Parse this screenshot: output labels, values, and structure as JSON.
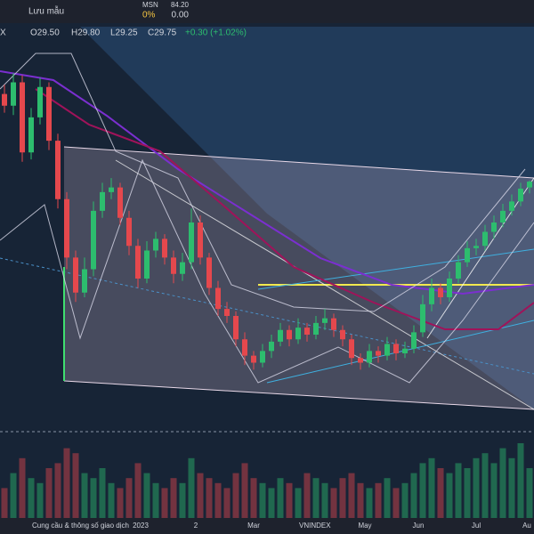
{
  "toolbar": {
    "save_label": "Lưu mẫu",
    "ticker": "MSN",
    "price": "84.20",
    "change_pct": "0%",
    "change": "0.00"
  },
  "legend": {
    "symbol": "X",
    "open": "O29.50",
    "high": "H29.80",
    "low": "L29.25",
    "close": "C29.75",
    "change": "+0.30 (+1.02%)"
  },
  "chart_data": {
    "type": "candlestick",
    "ylim": [
      20,
      36
    ],
    "up_color": "#2dbd6e",
    "down_color": "#e5484d",
    "open": [
      33.5,
      33.0,
      34.0,
      31.0,
      32.5,
      33.8,
      31.5,
      29.0,
      26.5,
      25.0,
      26.0,
      28.5,
      29.3,
      29.5,
      28.2,
      27.0,
      25.6,
      26.8,
      27.3,
      26.5,
      25.8,
      26.3,
      28.0,
      26.5,
      25.2,
      24.3,
      24.0,
      23.0,
      22.3,
      22.0,
      22.5,
      22.9,
      23.4,
      23.0,
      23.5,
      23.2,
      23.7,
      23.9,
      23.4,
      23.0,
      22.2,
      22.0,
      22.5,
      22.3,
      22.8,
      22.4,
      22.6,
      23.3,
      24.5,
      25.2,
      24.8,
      25.6,
      26.3,
      26.9,
      27.0,
      27.6,
      28.0,
      28.5,
      28.9,
      29.5
    ],
    "high": [
      33.9,
      34.4,
      34.3,
      32.9,
      34.2,
      34.0,
      31.8,
      29.3,
      26.8,
      26.5,
      28.9,
      29.7,
      29.9,
      29.7,
      28.5,
      27.3,
      27.2,
      27.6,
      27.5,
      26.8,
      26.7,
      28.6,
      28.3,
      26.7,
      25.5,
      24.6,
      24.2,
      23.3,
      22.5,
      22.8,
      23.2,
      23.7,
      23.6,
      23.9,
      23.7,
      24.0,
      24.3,
      24.1,
      23.6,
      23.2,
      22.4,
      22.8,
      22.7,
      23.1,
      23.0,
      22.9,
      23.6,
      24.9,
      25.6,
      25.4,
      25.9,
      26.6,
      27.2,
      27.3,
      27.9,
      28.3,
      28.8,
      29.2,
      29.7,
      29.8
    ],
    "low": [
      32.7,
      32.6,
      30.6,
      30.7,
      32.2,
      31.1,
      28.6,
      26.0,
      24.6,
      24.8,
      25.7,
      28.2,
      29.0,
      27.9,
      26.6,
      25.2,
      25.4,
      26.5,
      26.2,
      25.4,
      25.5,
      26.0,
      26.2,
      24.9,
      24.0,
      23.7,
      22.7,
      21.9,
      21.7,
      21.8,
      22.2,
      22.7,
      22.7,
      22.8,
      22.9,
      23.0,
      23.4,
      23.1,
      22.7,
      21.9,
      21.7,
      21.8,
      22.0,
      22.1,
      22.1,
      22.2,
      22.4,
      23.1,
      24.2,
      24.5,
      24.6,
      25.4,
      26.1,
      26.6,
      26.8,
      27.3,
      27.8,
      28.3,
      28.7,
      29.25
    ],
    "close": [
      33.0,
      34.0,
      31.0,
      32.5,
      33.8,
      31.5,
      29.0,
      26.5,
      25.0,
      26.0,
      28.5,
      29.3,
      29.5,
      28.2,
      27.0,
      25.6,
      26.8,
      27.3,
      26.5,
      25.8,
      26.3,
      28.0,
      26.5,
      25.2,
      24.3,
      24.0,
      23.0,
      22.3,
      22.0,
      22.5,
      22.9,
      23.4,
      23.0,
      23.5,
      23.2,
      23.7,
      23.9,
      23.4,
      23.0,
      22.2,
      22.0,
      22.5,
      22.3,
      22.8,
      22.4,
      22.6,
      23.3,
      24.5,
      25.2,
      24.8,
      25.6,
      26.3,
      26.9,
      27.0,
      27.6,
      28.0,
      28.5,
      28.9,
      29.45,
      29.75
    ],
    "volume": [
      30,
      45,
      60,
      40,
      35,
      50,
      55,
      70,
      65,
      45,
      40,
      50,
      35,
      30,
      40,
      55,
      45,
      35,
      30,
      40,
      35,
      60,
      45,
      40,
      35,
      30,
      45,
      55,
      40,
      35,
      30,
      40,
      35,
      30,
      45,
      40,
      35,
      30,
      40,
      45,
      35,
      30,
      35,
      40,
      30,
      35,
      45,
      55,
      60,
      50,
      45,
      55,
      50,
      60,
      65,
      55,
      70,
      60,
      75,
      50
    ],
    "volume_lim": [
      0,
      100
    ]
  },
  "time_labels": [
    "2023",
    "2",
    "Mar",
    "May",
    "Jun",
    "Jul",
    "Au"
  ],
  "bottom_bar": {
    "indicator": "Cung cầu & thông số giao dịch",
    "compare": "VNINDEX"
  }
}
